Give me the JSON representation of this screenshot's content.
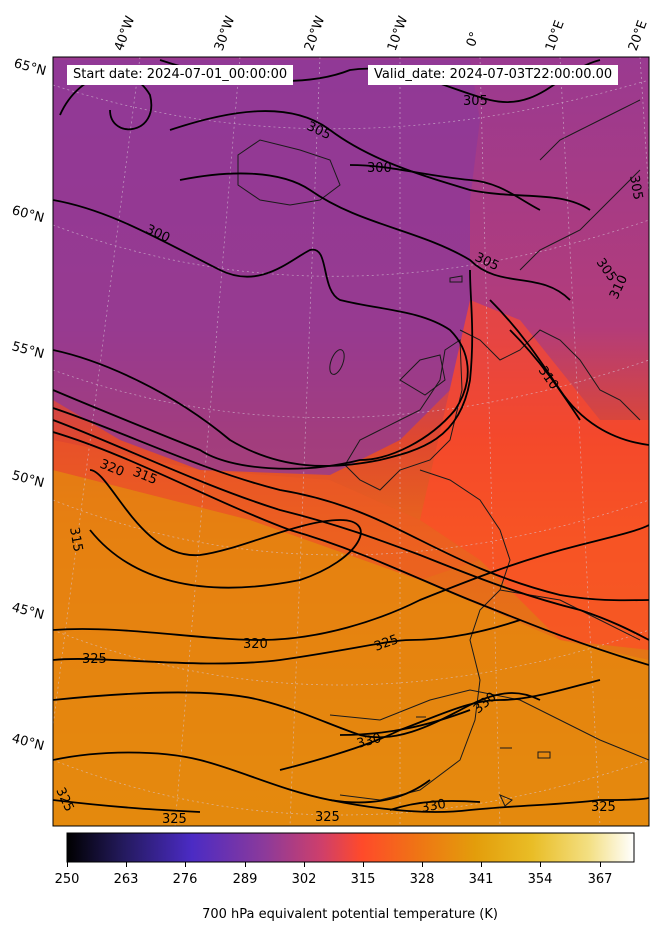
{
  "header": {
    "start_date": "Start date: 2024-07-01_00:00:00",
    "valid_date": "Valid_date: 2024-07-03T22:00:00.00"
  },
  "lon_labels": [
    "40°W",
    "30°W",
    "20°W",
    "10°W",
    "0°",
    "10°E",
    "20°E"
  ],
  "lat_labels": [
    "65°N",
    "60°N",
    "55°N",
    "50°N",
    "45°N",
    "40°N"
  ],
  "contour_labels": [
    "305",
    "300",
    "305",
    "300",
    "305",
    "305",
    "305",
    "310",
    "310",
    "320",
    "315",
    "315",
    "320",
    "325",
    "325",
    "330",
    "330",
    "325",
    "325",
    "330",
    "325",
    "325"
  ],
  "colorbar": {
    "title": "700 hPa equivalent potential temperature (K)",
    "ticks": [
      "250",
      "263",
      "276",
      "289",
      "302",
      "315",
      "328",
      "341",
      "354",
      "367"
    ],
    "colors": [
      "#000000",
      "#2a1b6b",
      "#4b2bc4",
      "#8a3a9e",
      "#c8407a",
      "#ff4a2a",
      "#ee7a14",
      "#e6a10a",
      "#e9c22c",
      "#f4e68a",
      "#ffffff"
    ]
  },
  "map_colors": {
    "cold": "#8a3a9e",
    "mid": "#d8484e",
    "warm": "#ff4a2a",
    "hot": "#e58a0e"
  }
}
